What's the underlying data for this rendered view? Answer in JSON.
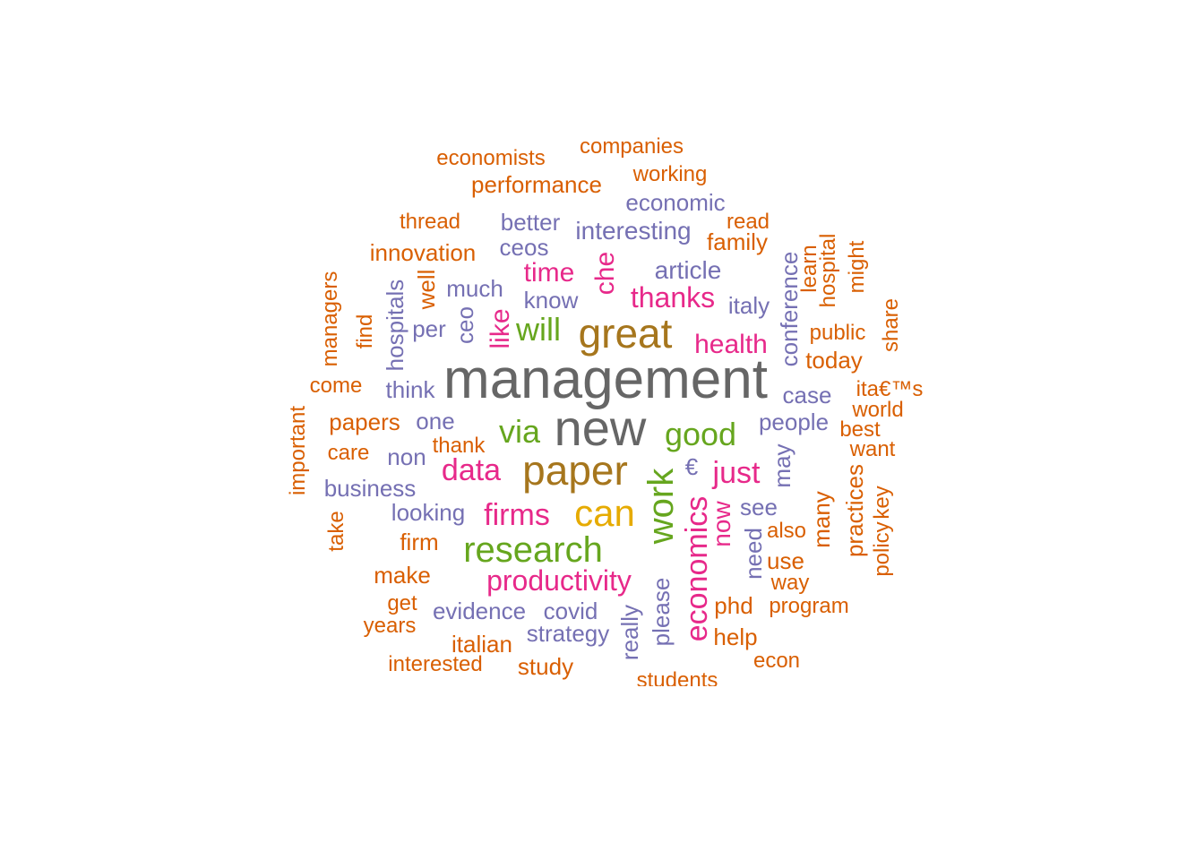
{
  "palette": {
    "orange": "#D95F02",
    "purple": "#7570B3",
    "pink": "#E7298A",
    "green": "#66A61E",
    "gold": "#E6AB02",
    "brown": "#A6761D",
    "gray": "#666666"
  },
  "words": [
    {
      "text": "management",
      "color": "gray",
      "weight": 10,
      "orientation": "horizontal"
    },
    {
      "text": "new",
      "color": "gray",
      "weight": 10,
      "orientation": "horizontal"
    },
    {
      "text": "paper",
      "color": "brown",
      "weight": 8,
      "orientation": "horizontal"
    },
    {
      "text": "great",
      "color": "brown",
      "weight": 8,
      "orientation": "horizontal"
    },
    {
      "text": "can",
      "color": "gold",
      "weight": 7,
      "orientation": "horizontal"
    },
    {
      "text": "research",
      "color": "green",
      "weight": 6,
      "orientation": "horizontal"
    },
    {
      "text": "work",
      "color": "green",
      "weight": 6,
      "orientation": "vertical"
    },
    {
      "text": "good",
      "color": "green",
      "weight": 5,
      "orientation": "horizontal"
    },
    {
      "text": "via",
      "color": "green",
      "weight": 5,
      "orientation": "horizontal"
    },
    {
      "text": "will",
      "color": "green",
      "weight": 5,
      "orientation": "horizontal"
    },
    {
      "text": "data",
      "color": "pink",
      "weight": 5,
      "orientation": "horizontal"
    },
    {
      "text": "economics",
      "color": "pink",
      "weight": 5,
      "orientation": "vertical"
    },
    {
      "text": "firms",
      "color": "pink",
      "weight": 4,
      "orientation": "horizontal"
    },
    {
      "text": "just",
      "color": "pink",
      "weight": 4,
      "orientation": "horizontal"
    },
    {
      "text": "productivity",
      "color": "pink",
      "weight": 4,
      "orientation": "horizontal"
    },
    {
      "text": "thanks",
      "color": "pink",
      "weight": 4,
      "orientation": "horizontal"
    },
    {
      "text": "time",
      "color": "pink",
      "weight": 4,
      "orientation": "horizontal"
    },
    {
      "text": "health",
      "color": "pink",
      "weight": 3,
      "orientation": "horizontal"
    },
    {
      "text": "like",
      "color": "pink",
      "weight": 3,
      "orientation": "vertical"
    },
    {
      "text": "che",
      "color": "pink",
      "weight": 3,
      "orientation": "vertical"
    },
    {
      "text": "now",
      "color": "pink",
      "weight": 3,
      "orientation": "vertical"
    },
    {
      "text": "article",
      "color": "purple",
      "weight": 3,
      "orientation": "horizontal"
    },
    {
      "text": "interesting",
      "color": "purple",
      "weight": 3,
      "orientation": "horizontal"
    },
    {
      "text": "much",
      "color": "purple",
      "weight": 3,
      "orientation": "horizontal"
    },
    {
      "text": "ceo",
      "color": "purple",
      "weight": 3,
      "orientation": "vertical"
    },
    {
      "text": "people",
      "color": "purple",
      "weight": 2,
      "orientation": "horizontal"
    },
    {
      "text": "see",
      "color": "purple",
      "weight": 2,
      "orientation": "horizontal"
    },
    {
      "text": "one",
      "color": "purple",
      "weight": 2,
      "orientation": "horizontal"
    },
    {
      "text": "looking",
      "color": "purple",
      "weight": 2,
      "orientation": "horizontal"
    },
    {
      "text": "evidence",
      "color": "purple",
      "weight": 2,
      "orientation": "horizontal"
    },
    {
      "text": "covid",
      "color": "purple",
      "weight": 2,
      "orientation": "horizontal"
    },
    {
      "text": "strategy",
      "color": "purple",
      "weight": 2,
      "orientation": "horizontal"
    },
    {
      "text": "economic",
      "color": "purple",
      "weight": 2,
      "orientation": "horizontal"
    },
    {
      "text": "better",
      "color": "purple",
      "weight": 2,
      "orientation": "horizontal"
    },
    {
      "text": "ceos",
      "color": "purple",
      "weight": 2,
      "orientation": "horizontal"
    },
    {
      "text": "know",
      "color": "purple",
      "weight": 2,
      "orientation": "horizontal"
    },
    {
      "text": "italy",
      "color": "purple",
      "weight": 2,
      "orientation": "horizontal"
    },
    {
      "text": "case",
      "color": "purple",
      "weight": 2,
      "orientation": "horizontal"
    },
    {
      "text": "think",
      "color": "purple",
      "weight": 2,
      "orientation": "horizontal"
    },
    {
      "text": "per",
      "color": "purple",
      "weight": 2,
      "orientation": "horizontal"
    },
    {
      "text": "non",
      "color": "purple",
      "weight": 2,
      "orientation": "horizontal"
    },
    {
      "text": "business",
      "color": "purple",
      "weight": 2,
      "orientation": "horizontal"
    },
    {
      "text": "please",
      "color": "purple",
      "weight": 2,
      "orientation": "vertical"
    },
    {
      "text": "really",
      "color": "purple",
      "weight": 2,
      "orientation": "vertical"
    },
    {
      "text": "need",
      "color": "purple",
      "weight": 2,
      "orientation": "vertical"
    },
    {
      "text": "may",
      "color": "purple",
      "weight": 2,
      "orientation": "vertical"
    },
    {
      "text": "conference",
      "color": "purple",
      "weight": 2,
      "orientation": "vertical"
    },
    {
      "text": "hospitals",
      "color": "purple",
      "weight": 2,
      "orientation": "vertical"
    },
    {
      "text": "€",
      "color": "purple",
      "weight": 2,
      "orientation": "horizontal"
    },
    {
      "text": "performance",
      "color": "orange",
      "weight": 2,
      "orientation": "horizontal"
    },
    {
      "text": "innovation",
      "color": "orange",
      "weight": 2,
      "orientation": "horizontal"
    },
    {
      "text": "papers",
      "color": "orange",
      "weight": 2,
      "orientation": "horizontal"
    },
    {
      "text": "today",
      "color": "orange",
      "weight": 2,
      "orientation": "horizontal"
    },
    {
      "text": "family",
      "color": "orange",
      "weight": 2,
      "orientation": "horizontal"
    },
    {
      "text": "use",
      "color": "orange",
      "weight": 2,
      "orientation": "horizontal"
    },
    {
      "text": "phd",
      "color": "orange",
      "weight": 2,
      "orientation": "horizontal"
    },
    {
      "text": "help",
      "color": "orange",
      "weight": 2,
      "orientation": "horizontal"
    },
    {
      "text": "italian",
      "color": "orange",
      "weight": 2,
      "orientation": "horizontal"
    },
    {
      "text": "study",
      "color": "orange",
      "weight": 2,
      "orientation": "horizontal"
    },
    {
      "text": "make",
      "color": "orange",
      "weight": 2,
      "orientation": "horizontal"
    },
    {
      "text": "firm",
      "color": "orange",
      "weight": 2,
      "orientation": "horizontal"
    },
    {
      "text": "well",
      "color": "orange",
      "weight": 2,
      "orientation": "vertical"
    },
    {
      "text": "many",
      "color": "orange",
      "weight": 2,
      "orientation": "vertical"
    },
    {
      "text": "practices",
      "color": "orange",
      "weight": 2,
      "orientation": "vertical"
    },
    {
      "text": "economists",
      "color": "orange",
      "weight": 1,
      "orientation": "horizontal"
    },
    {
      "text": "companies",
      "color": "orange",
      "weight": 1,
      "orientation": "horizontal"
    },
    {
      "text": "working",
      "color": "orange",
      "weight": 1,
      "orientation": "horizontal"
    },
    {
      "text": "thread",
      "color": "orange",
      "weight": 1,
      "orientation": "horizontal"
    },
    {
      "text": "read",
      "color": "orange",
      "weight": 1,
      "orientation": "horizontal"
    },
    {
      "text": "public",
      "color": "orange",
      "weight": 1,
      "orientation": "horizontal"
    },
    {
      "text": "come",
      "color": "orange",
      "weight": 1,
      "orientation": "horizontal"
    },
    {
      "text": "ita€™s",
      "color": "orange",
      "weight": 1,
      "orientation": "horizontal"
    },
    {
      "text": "world",
      "color": "orange",
      "weight": 1,
      "orientation": "horizontal"
    },
    {
      "text": "best",
      "color": "orange",
      "weight": 1,
      "orientation": "horizontal"
    },
    {
      "text": "want",
      "color": "orange",
      "weight": 1,
      "orientation": "horizontal"
    },
    {
      "text": "thank",
      "color": "orange",
      "weight": 1,
      "orientation": "horizontal"
    },
    {
      "text": "care",
      "color": "orange",
      "weight": 1,
      "orientation": "horizontal"
    },
    {
      "text": "also",
      "color": "orange",
      "weight": 1,
      "orientation": "horizontal"
    },
    {
      "text": "way",
      "color": "orange",
      "weight": 1,
      "orientation": "horizontal"
    },
    {
      "text": "program",
      "color": "orange",
      "weight": 1,
      "orientation": "horizontal"
    },
    {
      "text": "get",
      "color": "orange",
      "weight": 1,
      "orientation": "horizontal"
    },
    {
      "text": "years",
      "color": "orange",
      "weight": 1,
      "orientation": "horizontal"
    },
    {
      "text": "interested",
      "color": "orange",
      "weight": 1,
      "orientation": "horizontal"
    },
    {
      "text": "econ",
      "color": "orange",
      "weight": 1,
      "orientation": "horizontal"
    },
    {
      "text": "students",
      "color": "orange",
      "weight": 1,
      "orientation": "horizontal"
    },
    {
      "text": "managers",
      "color": "orange",
      "weight": 1,
      "orientation": "vertical"
    },
    {
      "text": "find",
      "color": "orange",
      "weight": 1,
      "orientation": "vertical"
    },
    {
      "text": "important",
      "color": "orange",
      "weight": 1,
      "orientation": "vertical"
    },
    {
      "text": "take",
      "color": "orange",
      "weight": 1,
      "orientation": "vertical"
    },
    {
      "text": "learn",
      "color": "orange",
      "weight": 1,
      "orientation": "vertical"
    },
    {
      "text": "hospital",
      "color": "orange",
      "weight": 1,
      "orientation": "vertical"
    },
    {
      "text": "might",
      "color": "orange",
      "weight": 1,
      "orientation": "vertical"
    },
    {
      "text": "share",
      "color": "orange",
      "weight": 1,
      "orientation": "vertical"
    },
    {
      "text": "key",
      "color": "orange",
      "weight": 1,
      "orientation": "vertical"
    },
    {
      "text": "policy",
      "color": "orange",
      "weight": 1,
      "orientation": "vertical"
    }
  ]
}
